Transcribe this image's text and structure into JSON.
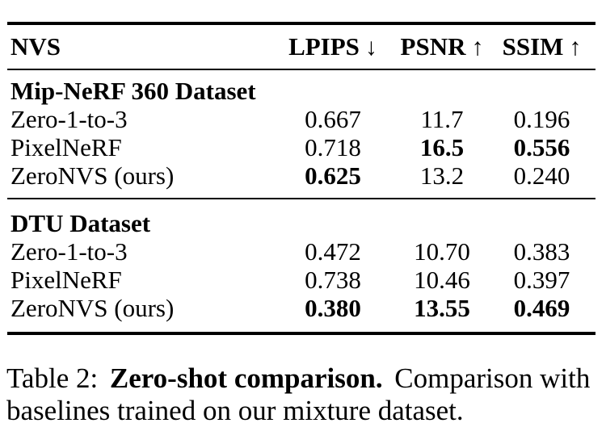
{
  "table": {
    "header": {
      "row_label": "NVS",
      "columns": [
        {
          "label": "LPIPS",
          "arrow": "↓"
        },
        {
          "label": "PSNR",
          "arrow": "↑"
        },
        {
          "label": "SSIM",
          "arrow": "↑"
        }
      ]
    },
    "sections": [
      {
        "title": "Mip-NeRF 360 Dataset",
        "rows": [
          {
            "name": "Zero-1-to-3",
            "lpips": "0.667",
            "psnr": "11.7",
            "ssim": "0.196"
          },
          {
            "name": "PixelNeRF",
            "lpips": "0.718",
            "psnr": "16.5",
            "ssim": "0.556"
          },
          {
            "name": "ZeroNVS (ours)",
            "lpips": "0.625",
            "psnr": "13.2",
            "ssim": "0.240"
          }
        ]
      },
      {
        "title": "DTU Dataset",
        "rows": [
          {
            "name": "Zero-1-to-3",
            "lpips": "0.472",
            "psnr": "10.70",
            "ssim": "0.383"
          },
          {
            "name": "PixelNeRF",
            "lpips": "0.738",
            "psnr": "10.46",
            "ssim": "0.397"
          },
          {
            "name": "ZeroNVS (ours)",
            "lpips": "0.380",
            "psnr": "13.55",
            "ssim": "0.469"
          }
        ]
      }
    ]
  },
  "caption": {
    "prefix": "Table 2:",
    "bold": "Zero-shot comparison.",
    "rest": "Comparison with baselines trained on our mixture dataset."
  },
  "colors": {
    "text": "#000000",
    "background": "#ffffff",
    "rule": "#000000"
  }
}
